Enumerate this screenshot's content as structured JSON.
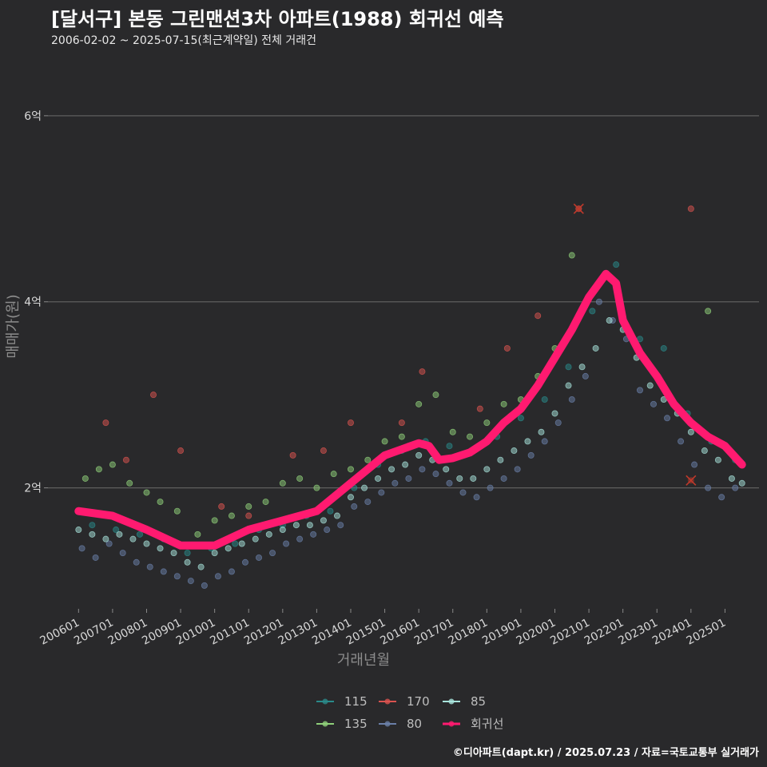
{
  "header": {
    "title": "[달서구] 본동 그린맨션3차 아파트(1988) 회귀선 예측",
    "subtitle": "2006-02-02 ~ 2025-07-15(최근계약일) 전체 거래건"
  },
  "caption": "©디아파트(dapt.kr) / 2025.07.23 / 자료=국토교통부 실거래가",
  "chart_data": {
    "type": "scatter",
    "xlabel": "거래년월",
    "ylabel": "매매가(원)",
    "ylim": [
      0.7,
      6.6
    ],
    "y_unit": "억",
    "y_ticks": [
      {
        "value": 2,
        "label": "2억"
      },
      {
        "value": 4,
        "label": "4억"
      },
      {
        "value": 6,
        "label": "6억"
      }
    ],
    "x_ticks": [
      "200601",
      "200701",
      "200801",
      "200901",
      "201001",
      "201101",
      "201201",
      "201301",
      "201401",
      "201501",
      "201601",
      "201701",
      "201801",
      "201901",
      "202001",
      "202101",
      "202201",
      "202301",
      "202401",
      "202501"
    ],
    "x_range": [
      2005.1,
      2026.0
    ],
    "grid": true,
    "legend_position": "bottom",
    "legend": [
      {
        "name": "115",
        "color": "#2a8a8a"
      },
      {
        "name": "135",
        "color": "#8fd07a"
      },
      {
        "name": "170",
        "color": "#d9534f"
      },
      {
        "name": "80",
        "color": "#6a7fa8"
      },
      {
        "name": "85",
        "color": "#a8e4dc"
      },
      {
        "name": "회귀선",
        "color": "#ff1a70"
      }
    ],
    "regression_line": {
      "name": "회귀선",
      "color": "#ff1a70",
      "x": [
        2006.0,
        2007.0,
        2008.0,
        2009.0,
        2010.0,
        2011.0,
        2012.0,
        2013.0,
        2014.0,
        2015.0,
        2016.0,
        2016.3,
        2016.6,
        2017.0,
        2017.5,
        2018.0,
        2018.5,
        2019.0,
        2019.5,
        2020.0,
        2020.5,
        2021.0,
        2021.5,
        2021.8,
        2022.0,
        2022.5,
        2023.0,
        2023.5,
        2024.0,
        2024.5,
        2025.0,
        2025.5
      ],
      "y": [
        1.75,
        1.7,
        1.55,
        1.38,
        1.38,
        1.55,
        1.65,
        1.75,
        2.05,
        2.35,
        2.48,
        2.45,
        2.3,
        2.32,
        2.38,
        2.5,
        2.7,
        2.85,
        3.1,
        3.4,
        3.7,
        4.05,
        4.3,
        4.2,
        3.8,
        3.45,
        3.2,
        2.9,
        2.7,
        2.55,
        2.45,
        2.25
      ]
    },
    "series": [
      {
        "name": "115",
        "color": "#2a8a8a",
        "x": [
          2006.4,
          2007.1,
          2007.8,
          2008.5,
          2009.2,
          2009.9,
          2010.6,
          2011.3,
          2012.0,
          2012.7,
          2013.4,
          2014.1,
          2014.8,
          2015.5,
          2016.2,
          2016.9,
          2017.6,
          2018.3,
          2019.0,
          2019.7,
          2020.4,
          2021.1,
          2021.8,
          2022.5,
          2023.2,
          2023.9,
          2024.6,
          2025.3
        ],
        "y": [
          1.6,
          1.55,
          1.5,
          1.45,
          1.3,
          1.35,
          1.4,
          1.55,
          1.6,
          1.7,
          1.75,
          2.0,
          2.25,
          2.4,
          2.5,
          2.45,
          2.4,
          2.55,
          2.75,
          2.95,
          3.3,
          3.9,
          4.4,
          3.6,
          3.5,
          2.8,
          2.5,
          2.3
        ]
      },
      {
        "name": "135",
        "color": "#8fd07a",
        "x": [
          2006.2,
          2006.6,
          2007.0,
          2007.5,
          2008.0,
          2008.4,
          2008.9,
          2009.5,
          2010.0,
          2010.5,
          2011.0,
          2011.5,
          2012.0,
          2012.5,
          2013.0,
          2013.5,
          2014.0,
          2014.5,
          2015.0,
          2015.5,
          2016.0,
          2016.5,
          2017.0,
          2017.5,
          2018.0,
          2018.5,
          2019.0,
          2019.5,
          2020.0,
          2020.5,
          2024.5
        ],
        "y": [
          2.1,
          2.2,
          2.25,
          2.05,
          1.95,
          1.85,
          1.75,
          1.5,
          1.65,
          1.7,
          1.8,
          1.85,
          2.05,
          2.1,
          2.0,
          2.15,
          2.2,
          2.3,
          2.5,
          2.55,
          2.9,
          3.0,
          2.6,
          2.55,
          2.7,
          2.9,
          2.95,
          3.2,
          3.5,
          4.5,
          3.9
        ]
      },
      {
        "name": "170",
        "color": "#d9534f",
        "x": [
          2006.8,
          2007.4,
          2008.2,
          2009.0,
          2010.2,
          2011.0,
          2012.3,
          2013.2,
          2014.0,
          2015.5,
          2016.1,
          2017.8,
          2018.6,
          2019.5,
          2020.7,
          2024.0
        ],
        "y": [
          2.7,
          2.3,
          3.0,
          2.4,
          1.8,
          1.7,
          2.35,
          2.4,
          2.7,
          2.7,
          3.25,
          2.85,
          3.5,
          3.85,
          5.0,
          5.0
        ]
      },
      {
        "name": "80",
        "color": "#6a7fa8",
        "x": [
          2006.1,
          2006.5,
          2006.9,
          2007.3,
          2007.7,
          2008.1,
          2008.5,
          2008.9,
          2009.3,
          2009.7,
          2010.1,
          2010.5,
          2010.9,
          2011.3,
          2011.7,
          2012.1,
          2012.5,
          2012.9,
          2013.3,
          2013.7,
          2014.1,
          2014.5,
          2014.9,
          2015.3,
          2015.7,
          2016.1,
          2016.5,
          2016.9,
          2017.3,
          2017.7,
          2018.1,
          2018.5,
          2018.9,
          2019.3,
          2019.7,
          2020.1,
          2020.5,
          2020.9,
          2021.3,
          2021.7,
          2022.1,
          2022.5,
          2022.9,
          2023.3,
          2023.7,
          2024.1,
          2024.5,
          2024.9,
          2025.3
        ],
        "y": [
          1.35,
          1.25,
          1.4,
          1.3,
          1.2,
          1.15,
          1.1,
          1.05,
          1.0,
          0.95,
          1.05,
          1.1,
          1.2,
          1.25,
          1.3,
          1.4,
          1.45,
          1.5,
          1.55,
          1.6,
          1.8,
          1.85,
          1.95,
          2.05,
          2.1,
          2.2,
          2.15,
          2.05,
          1.95,
          1.9,
          2.0,
          2.1,
          2.2,
          2.35,
          2.5,
          2.7,
          2.95,
          3.2,
          4.0,
          3.8,
          3.6,
          3.05,
          2.9,
          2.75,
          2.5,
          2.25,
          2.0,
          1.9,
          2.0
        ]
      },
      {
        "name": "85",
        "color": "#a8e4dc",
        "x": [
          2006.0,
          2006.4,
          2006.8,
          2007.2,
          2007.6,
          2008.0,
          2008.4,
          2008.8,
          2009.2,
          2009.6,
          2010.0,
          2010.4,
          2010.8,
          2011.2,
          2011.6,
          2012.0,
          2012.4,
          2012.8,
          2013.2,
          2013.6,
          2014.0,
          2014.4,
          2014.8,
          2015.2,
          2015.6,
          2016.0,
          2016.4,
          2016.8,
          2017.2,
          2017.6,
          2018.0,
          2018.4,
          2018.8,
          2019.2,
          2019.6,
          2020.0,
          2020.4,
          2020.8,
          2021.2,
          2021.6,
          2022.0,
          2022.4,
          2022.8,
          2023.2,
          2023.6,
          2024.0,
          2024.4,
          2024.8,
          2025.2,
          2025.5
        ],
        "y": [
          1.55,
          1.5,
          1.45,
          1.5,
          1.45,
          1.4,
          1.35,
          1.3,
          1.2,
          1.15,
          1.3,
          1.35,
          1.4,
          1.45,
          1.5,
          1.55,
          1.6,
          1.6,
          1.65,
          1.7,
          1.9,
          2.0,
          2.1,
          2.2,
          2.25,
          2.35,
          2.3,
          2.2,
          2.1,
          2.1,
          2.2,
          2.3,
          2.4,
          2.5,
          2.6,
          2.8,
          3.1,
          3.3,
          3.5,
          3.8,
          3.7,
          3.4,
          3.1,
          2.95,
          2.8,
          2.6,
          2.4,
          2.3,
          2.1,
          2.05
        ]
      }
    ],
    "highlighted_points": [
      {
        "x": 2020.7,
        "y": 5.0,
        "color": "#c0392b"
      },
      {
        "x": 2024.0,
        "y": 2.08,
        "color": "#c0392b"
      }
    ]
  }
}
